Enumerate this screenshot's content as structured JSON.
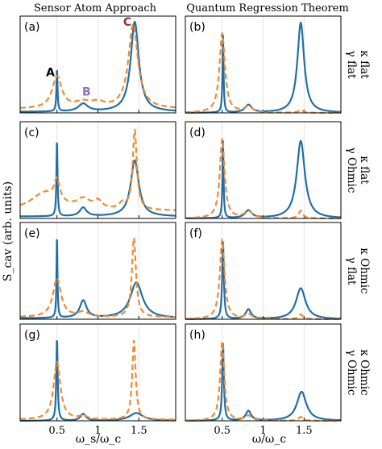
{
  "figure": {
    "column_titles": [
      "Sensor Atom Approach",
      "Quantum Regression Theorem"
    ],
    "ylabel": "S_cav (arb. units)",
    "xlabels": [
      "ω_s/ω_c",
      "ω/ω_c"
    ],
    "xticks": [
      0.5,
      1,
      1.5
    ],
    "xtick_labels": [
      "0.5",
      "1",
      "1.5"
    ],
    "xlim": [
      0.05,
      1.95
    ],
    "row_labels": [
      [
        "κ flat",
        "γ flat"
      ],
      [
        "κ flat",
        "γ Ohmic"
      ],
      [
        "κ Ohmic",
        "γ flat"
      ],
      [
        "κ Ohmic",
        "γ Ohmic"
      ]
    ],
    "peak_labels": [
      {
        "text": "A",
        "color": "#000000"
      },
      {
        "text": "B",
        "color": "#8f6fbf"
      },
      {
        "text": "C",
        "color": "#8b3a2f"
      }
    ],
    "colors": {
      "solid": "#1f6fa8",
      "dashed": "#f28a30",
      "grid": "#dddddd"
    }
  },
  "chart_data": [
    {
      "type": "line",
      "panel": "(a)",
      "column": 0,
      "row": 0,
      "series": [
        {
          "style": "solid",
          "base": 0.01,
          "peaks": [
            [
              0.5,
              0.008,
              0.44
            ],
            [
              0.82,
              0.07,
              0.08
            ],
            [
              1.45,
              0.06,
              0.93
            ]
          ]
        },
        {
          "style": "dashed",
          "base": 0.04,
          "peaks": [
            [
              0.5,
              0.07,
              0.33
            ],
            [
              0.82,
              0.12,
              0.06
            ],
            [
              1.0,
              0.09,
              0.05
            ],
            [
              1.43,
              0.07,
              0.87
            ]
          ]
        }
      ]
    },
    {
      "type": "line",
      "panel": "(b)",
      "column": 1,
      "row": 0,
      "series": [
        {
          "style": "solid",
          "base": 0.0,
          "peaks": [
            [
              0.51,
              0.008,
              0.8
            ],
            [
              0.82,
              0.05,
              0.08
            ],
            [
              1.46,
              0.05,
              0.93
            ]
          ]
        },
        {
          "style": "dashed",
          "base": 0.0,
          "peaks": [
            [
              0.5,
              0.04,
              0.82
            ],
            [
              0.82,
              0.06,
              0.06
            ],
            [
              1.46,
              0.03,
              0.03
            ]
          ]
        }
      ]
    },
    {
      "type": "line",
      "panel": "(c)",
      "column": 0,
      "row": 1,
      "series": [
        {
          "style": "solid",
          "base": 0.02,
          "peaks": [
            [
              0.5,
              0.008,
              0.79
            ],
            [
              0.82,
              0.05,
              0.09
            ],
            [
              1.45,
              0.06,
              0.58
            ]
          ]
        },
        {
          "style": "dashed",
          "base": 0.08,
          "peaks": [
            [
              0.35,
              0.2,
              0.18
            ],
            [
              0.5,
              0.04,
              0.22
            ],
            [
              0.82,
              0.1,
              0.1
            ],
            [
              1.0,
              0.06,
              0.08
            ],
            [
              1.3,
              0.05,
              0.06
            ],
            [
              1.45,
              0.03,
              0.82
            ]
          ]
        }
      ]
    },
    {
      "type": "line",
      "panel": "(d)",
      "column": 1,
      "row": 1,
      "series": [
        {
          "style": "solid",
          "base": 0.0,
          "peaks": [
            [
              0.51,
              0.008,
              0.8
            ],
            [
              0.82,
              0.05,
              0.08
            ],
            [
              1.46,
              0.06,
              0.8
            ]
          ]
        },
        {
          "style": "dashed",
          "base": 0.0,
          "peaks": [
            [
              0.5,
              0.035,
              0.82
            ],
            [
              0.82,
              0.06,
              0.07
            ],
            [
              1.46,
              0.03,
              0.08
            ]
          ]
        }
      ]
    },
    {
      "type": "line",
      "panel": "(e)",
      "column": 0,
      "row": 2,
      "series": [
        {
          "style": "solid",
          "base": 0.01,
          "peaks": [
            [
              0.5,
              0.007,
              0.85
            ],
            [
              0.82,
              0.05,
              0.18
            ],
            [
              1.47,
              0.09,
              0.37
            ]
          ]
        },
        {
          "style": "dashed",
          "base": 0.02,
          "peaks": [
            [
              0.5,
              0.06,
              0.4
            ],
            [
              0.82,
              0.08,
              0.05
            ],
            [
              1.44,
              0.03,
              0.82
            ]
          ]
        }
      ]
    },
    {
      "type": "line",
      "panel": "(f)",
      "column": 1,
      "row": 2,
      "series": [
        {
          "style": "solid",
          "base": 0.0,
          "peaks": [
            [
              0.51,
              0.012,
              0.8
            ],
            [
              0.82,
              0.04,
              0.1
            ],
            [
              1.46,
              0.07,
              0.32
            ]
          ]
        },
        {
          "style": "dashed",
          "base": 0.0,
          "peaks": [
            [
              0.5,
              0.035,
              0.82
            ],
            [
              0.82,
              0.05,
              0.05
            ],
            [
              1.46,
              0.03,
              0.05
            ]
          ]
        }
      ]
    },
    {
      "type": "line",
      "panel": "(g)",
      "column": 0,
      "row": 3,
      "series": [
        {
          "style": "solid",
          "base": 0.0,
          "peaks": [
            [
              0.5,
              0.01,
              0.85
            ],
            [
              0.82,
              0.04,
              0.07
            ],
            [
              1.47,
              0.1,
              0.08
            ]
          ]
        },
        {
          "style": "dashed",
          "base": 0.01,
          "peaks": [
            [
              0.5,
              0.05,
              0.6
            ],
            [
              0.82,
              0.05,
              0.04
            ],
            [
              1.44,
              0.025,
              0.82
            ]
          ]
        }
      ]
    },
    {
      "type": "line",
      "panel": "(h)",
      "column": 1,
      "row": 3,
      "series": [
        {
          "style": "solid",
          "base": 0.0,
          "peaks": [
            [
              0.51,
              0.012,
              0.8
            ],
            [
              0.82,
              0.04,
              0.1
            ],
            [
              1.47,
              0.07,
              0.3
            ]
          ]
        },
        {
          "style": "dashed",
          "base": 0.0,
          "peaks": [
            [
              0.5,
              0.03,
              0.82
            ],
            [
              0.82,
              0.05,
              0.05
            ],
            [
              1.46,
              0.03,
              0.04
            ]
          ]
        }
      ]
    }
  ]
}
